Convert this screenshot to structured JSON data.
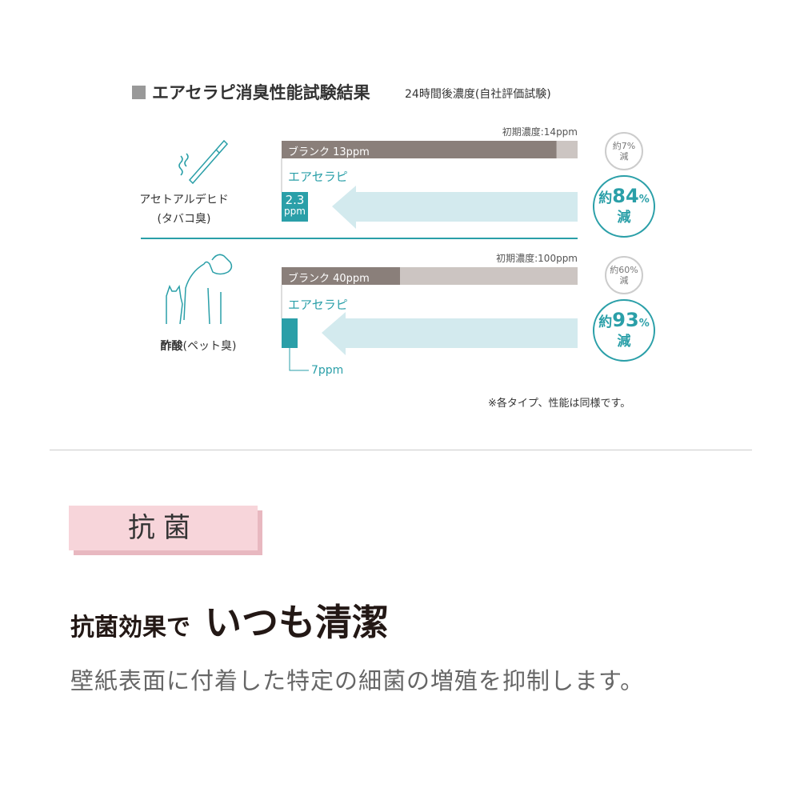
{
  "title": "エアセラピ消臭性能試験結果",
  "subtitle": "24時間後濃度(自社評価試験)",
  "colors": {
    "teal": "#2a9fa8",
    "arrow": "#d3eaee",
    "blank": "#8a7f7a",
    "initial": "#ccc5c2"
  },
  "chart_data": {
    "type": "bar",
    "title": "エアセラピ消臭性能試験結果",
    "subtitle": "24時間後濃度(自社評価試験)",
    "groups": [
      {
        "category": "アセトアルデヒド",
        "category_note": "(タバコ臭)",
        "icon": "cigarette-icon",
        "initial_label": "初期濃度:14ppm",
        "initial": 14,
        "blank_label": "ブランク 13ppm",
        "blank": 13,
        "treated_label": "エアセラピ",
        "treated": 2.3,
        "treated_value_text": "2.3",
        "treated_unit": "ppm",
        "blank_reduction": {
          "prefix": "約",
          "value": "7%",
          "suffix": "減"
        },
        "treated_reduction": {
          "prefix": "約",
          "value": "84",
          "pct": "%",
          "suffix": "減"
        }
      },
      {
        "category": "酢酸",
        "category_note": "(ペット臭)",
        "icon": "dog-cat-icon",
        "initial_label": "初期濃度:100ppm",
        "initial": 100,
        "blank_label": "ブランク 40ppm",
        "blank": 40,
        "treated_label": "エアセラピ",
        "treated": 7,
        "treated_value_text": "7ppm",
        "blank_reduction": {
          "prefix": "約",
          "value": "60%",
          "suffix": "減"
        },
        "treated_reduction": {
          "prefix": "約",
          "value": "93",
          "pct": "%",
          "suffix": "減"
        }
      }
    ],
    "note": "※各タイプ、性能は同様です。"
  },
  "section": {
    "label": "抗菌",
    "headline_small": "抗菌効果で",
    "headline_large": "いつも清潔",
    "description": "壁紙表面に付着した特定の細菌の増殖を抑制します。"
  }
}
